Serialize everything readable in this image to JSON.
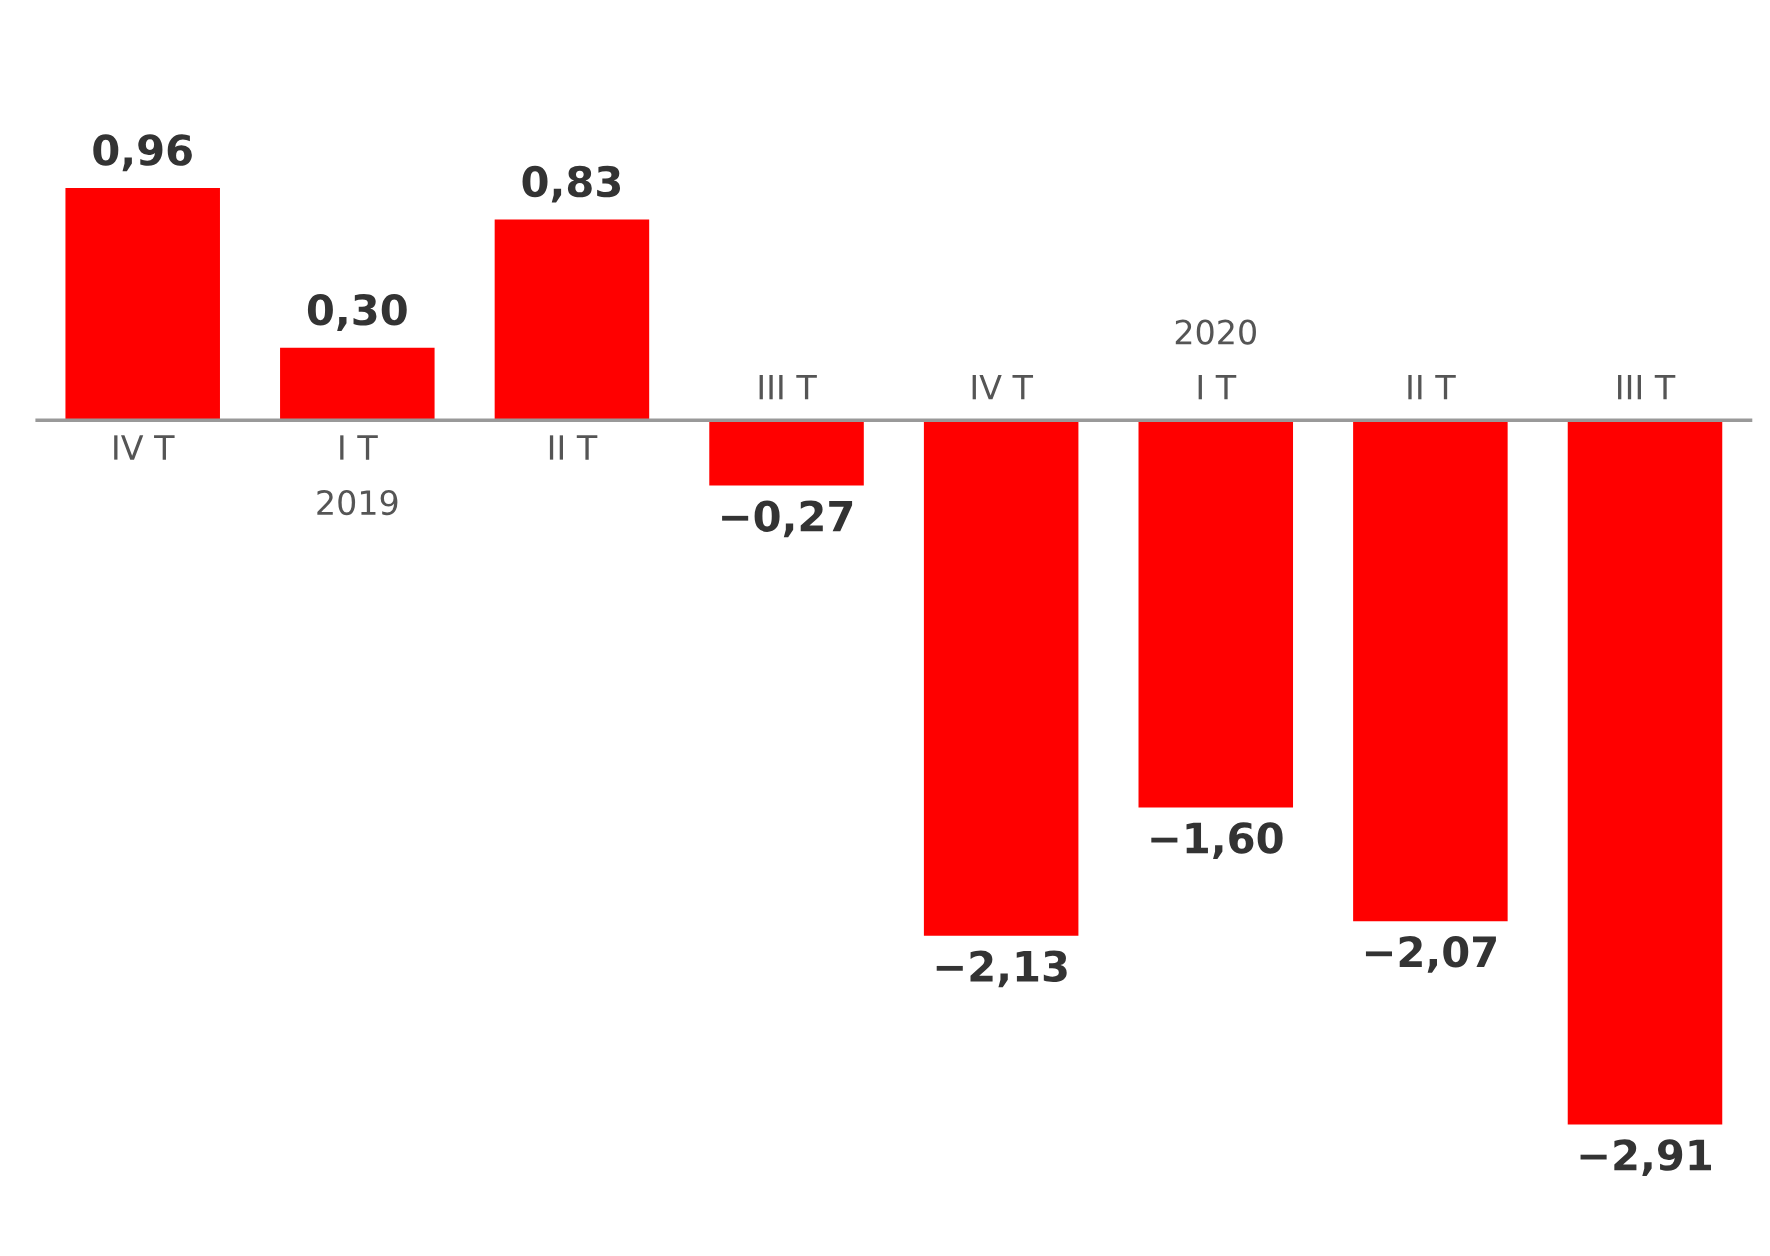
{
  "chart_data": {
    "type": "bar",
    "categories": [
      "IV T",
      "I T\n2019",
      "II T",
      "III T",
      "IV T",
      "2020\nI T",
      "II T",
      "III T"
    ],
    "values": [
      0.96,
      0.3,
      0.83,
      -0.27,
      -2.13,
      -1.6,
      -2.07,
      -2.91
    ],
    "value_labels": [
      "0,96",
      "0,30",
      "0,83",
      "−0,27",
      "−2,13",
      "−1,60",
      "−2,07",
      "−2,91"
    ],
    "color": "#ff0000"
  }
}
